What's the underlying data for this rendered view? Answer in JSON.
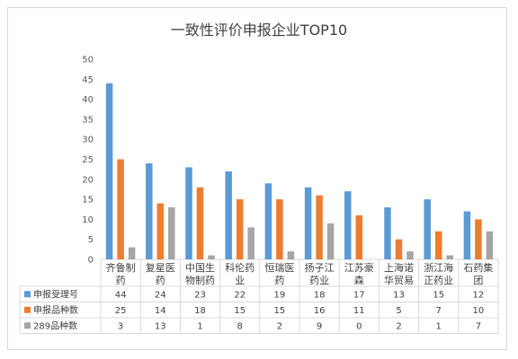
{
  "chart_data": {
    "type": "bar",
    "title": "一致性评价申报企业TOP10",
    "categories": [
      [
        "齐鲁制",
        "药"
      ],
      [
        "复星医",
        "药"
      ],
      [
        "中国生",
        "物制药"
      ],
      [
        "科伦药",
        "业"
      ],
      [
        "恒瑞医",
        "药"
      ],
      [
        "扬子江",
        "药业"
      ],
      [
        "江苏豪",
        "森"
      ],
      [
        "上海诺",
        "华贸易"
      ],
      [
        "浙江海",
        "正药业"
      ],
      [
        "石药集",
        "团"
      ]
    ],
    "series": [
      {
        "name": "申报受理号",
        "color": "#5b9bd5",
        "values": [
          44,
          24,
          23,
          22,
          19,
          18,
          17,
          13,
          15,
          12
        ]
      },
      {
        "name": "申报品种数",
        "color": "#ed7d31",
        "values": [
          25,
          14,
          18,
          15,
          15,
          16,
          11,
          5,
          7,
          10
        ]
      },
      {
        "name": "289品种数",
        "color": "#a5a5a5",
        "values": [
          3,
          13,
          1,
          8,
          2,
          9,
          0,
          2,
          1,
          7
        ]
      }
    ],
    "ylim": [
      0,
      50
    ],
    "yticks": [
      "0",
      "5",
      "10",
      "15",
      "20",
      "25",
      "30",
      "35",
      "40",
      "45",
      "50"
    ],
    "grid": false,
    "legend": "data-table"
  }
}
